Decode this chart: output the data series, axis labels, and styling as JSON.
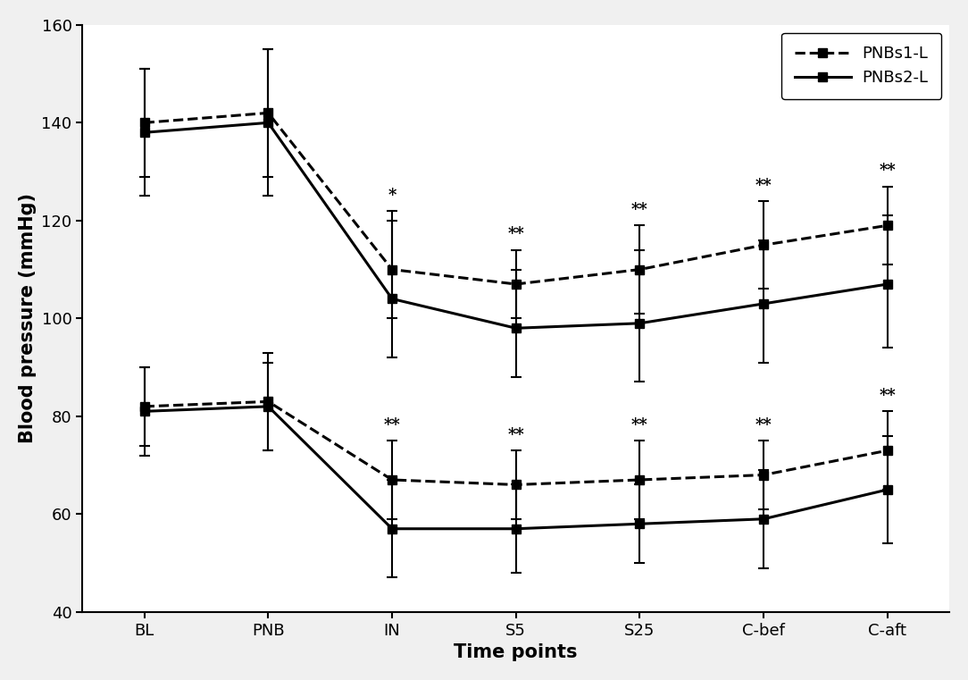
{
  "time_points": [
    "BL",
    "PNB",
    "IN",
    "S5",
    "S25",
    "C-bef",
    "C-aft"
  ],
  "x": [
    0,
    1,
    2,
    3,
    4,
    5,
    6
  ],
  "series": {
    "PNBs1-L": {
      "systolic": {
        "mean": [
          140,
          142,
          110,
          107,
          110,
          115,
          119
        ],
        "err_upper": [
          11,
          13,
          12,
          7,
          9,
          9,
          8
        ],
        "err_lower": [
          11,
          13,
          10,
          7,
          9,
          9,
          8
        ]
      },
      "diastolic": {
        "mean": [
          82,
          83,
          67,
          66,
          67,
          68,
          73
        ],
        "err_upper": [
          8,
          10,
          8,
          7,
          8,
          7,
          8
        ],
        "err_lower": [
          8,
          10,
          8,
          7,
          8,
          7,
          8
        ]
      },
      "linestyle": "dashed",
      "linewidth": 2.2,
      "label": "PNBs1-L"
    },
    "PNBs2-L": {
      "systolic": {
        "mean": [
          138,
          140,
          104,
          98,
          99,
          103,
          107
        ],
        "err_upper": [
          13,
          15,
          16,
          12,
          15,
          13,
          14
        ],
        "err_lower": [
          13,
          15,
          12,
          10,
          12,
          12,
          13
        ]
      },
      "diastolic": {
        "mean": [
          81,
          82,
          57,
          57,
          58,
          59,
          65
        ],
        "err_upper": [
          9,
          9,
          10,
          9,
          8,
          10,
          11
        ],
        "err_lower": [
          9,
          9,
          10,
          9,
          8,
          10,
          11
        ]
      },
      "linestyle": "solid",
      "linewidth": 2.2,
      "label": "PNBs2-L"
    }
  },
  "significance": {
    "systolic": {
      "IN": "*",
      "S5": "**",
      "S25": "**",
      "C-bef": "**",
      "C-aft": "**"
    },
    "diastolic": {
      "IN": "**",
      "S5": "**",
      "S25": "**",
      "C-bef": "**",
      "C-aft": "**"
    }
  },
  "sig_idx": {
    "IN": 2,
    "S5": 3,
    "S25": 4,
    "C-bef": 5,
    "C-aft": 6
  },
  "ylabel": "Blood pressure (mmHg)",
  "xlabel": "Time points",
  "ylim": [
    40,
    160
  ],
  "yticks": [
    40,
    60,
    80,
    100,
    120,
    140,
    160
  ],
  "color": "black",
  "marker": "s",
  "markersize": 7,
  "capsize": 4,
  "capthick": 1.5,
  "legend_loc": "upper right",
  "fig_width": 10.84,
  "fig_height": 7.61,
  "facecolor": "#f0f0f0",
  "plot_bgcolor": "white"
}
